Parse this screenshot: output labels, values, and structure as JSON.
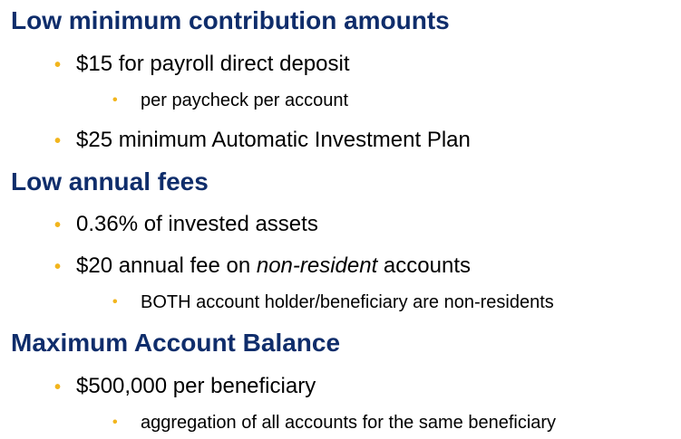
{
  "sections": [
    {
      "heading": "Low minimum contribution amounts",
      "bullets": [
        {
          "text": "$15 for payroll direct deposit"
        },
        {
          "text": "per paycheck per account"
        },
        {
          "text": "$25 minimum Automatic Investment Plan"
        }
      ]
    },
    {
      "heading": "Low annual fees",
      "bullets": [
        {
          "text": "0.36% of invested assets"
        },
        {
          "pre": "$20 annual fee on ",
          "em": "non-resident",
          "post": " accounts"
        },
        {
          "text": "BOTH account holder/beneficiary are non-residents"
        }
      ]
    },
    {
      "heading": "Maximum Account Balance",
      "bullets": [
        {
          "text": "$500,000 per beneficiary"
        },
        {
          "text": "aggregation of all accounts for the same beneficiary"
        }
      ]
    }
  ],
  "bullet_glyph": "•",
  "colors": {
    "heading": "#0f2d6b",
    "bullet": "#f2b51d",
    "text": "#000000"
  }
}
